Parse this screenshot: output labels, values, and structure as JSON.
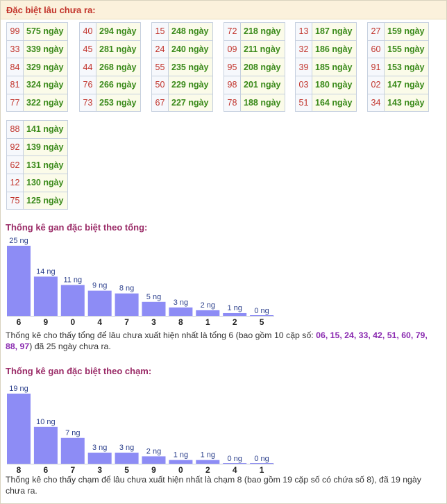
{
  "header": {
    "title": "Đặc biệt lâu chưa ra:"
  },
  "tables": [
    [
      {
        "num": "99",
        "days": "575 ngày"
      },
      {
        "num": "33",
        "days": "339 ngày"
      },
      {
        "num": "84",
        "days": "329 ngày"
      },
      {
        "num": "81",
        "days": "324 ngày"
      },
      {
        "num": "77",
        "days": "322 ngày"
      }
    ],
    [
      {
        "num": "40",
        "days": "294 ngày"
      },
      {
        "num": "45",
        "days": "281 ngày"
      },
      {
        "num": "44",
        "days": "268 ngày"
      },
      {
        "num": "76",
        "days": "266 ngày"
      },
      {
        "num": "73",
        "days": "253 ngày"
      }
    ],
    [
      {
        "num": "15",
        "days": "248 ngày"
      },
      {
        "num": "24",
        "days": "240 ngày"
      },
      {
        "num": "55",
        "days": "235 ngày"
      },
      {
        "num": "50",
        "days": "229 ngày"
      },
      {
        "num": "67",
        "days": "227 ngày"
      }
    ],
    [
      {
        "num": "72",
        "days": "218 ngày"
      },
      {
        "num": "09",
        "days": "211 ngày"
      },
      {
        "num": "95",
        "days": "208 ngày"
      },
      {
        "num": "98",
        "days": "201 ngày"
      },
      {
        "num": "78",
        "days": "188 ngày"
      }
    ],
    [
      {
        "num": "13",
        "days": "187 ngày"
      },
      {
        "num": "32",
        "days": "186 ngày"
      },
      {
        "num": "39",
        "days": "185 ngày"
      },
      {
        "num": "03",
        "days": "180 ngày"
      },
      {
        "num": "51",
        "days": "164 ngày"
      }
    ],
    [
      {
        "num": "27",
        "days": "159 ngày"
      },
      {
        "num": "60",
        "days": "155 ngày"
      },
      {
        "num": "91",
        "days": "153 ngày"
      },
      {
        "num": "02",
        "days": "147 ngày"
      },
      {
        "num": "34",
        "days": "143 ngày"
      }
    ],
    [
      {
        "num": "88",
        "days": "141 ngày"
      },
      {
        "num": "92",
        "days": "139 ngày"
      },
      {
        "num": "62",
        "days": "131 ngày"
      },
      {
        "num": "12",
        "days": "130 ngày"
      },
      {
        "num": "75",
        "days": "125 ngày"
      }
    ]
  ],
  "chart_data": [
    {
      "type": "bar",
      "title": "Thống kê gan đặc biệt theo tổng:",
      "categories": [
        "6",
        "9",
        "0",
        "4",
        "7",
        "3",
        "8",
        "1",
        "2",
        "5"
      ],
      "values": [
        25,
        14,
        11,
        9,
        8,
        5,
        3,
        2,
        1,
        0
      ],
      "value_labels": [
        "25 ng",
        "14 ng",
        "11 ng",
        "9 ng",
        "8 ng",
        "5 ng",
        "3 ng",
        "2 ng",
        "1 ng",
        "0 ng"
      ],
      "bar_color": "#8d8cf5"
    },
    {
      "type": "bar",
      "title": "Thống kê gan đặc biệt theo chạm:",
      "categories": [
        "8",
        "6",
        "7",
        "3",
        "5",
        "9",
        "0",
        "2",
        "4",
        "1"
      ],
      "values": [
        19,
        10,
        7,
        3,
        3,
        2,
        1,
        1,
        0,
        0
      ],
      "value_labels": [
        "19 ng",
        "10 ng",
        "7 ng",
        "3 ng",
        "3 ng",
        "2 ng",
        "1 ng",
        "1 ng",
        "0 ng",
        "0 ng"
      ],
      "bar_color": "#8d8cf5"
    }
  ],
  "summary1": {
    "prefix": "Thống kê cho thấy tổng để lâu chưa xuất hiện nhất là tổng 6 (bao gồm 10 cặp số: ",
    "pairs": "06, 15, 24, 33, 42, 51, 60, 79, 88, 97",
    "suffix": ") đã 25 ngày chưa ra."
  },
  "summary2": {
    "text": "Thống kê cho thấy chạm để lâu chưa xuất hiện nhất là chạm 8 (bao gồm 19 cặp số có chứa số 8), đã 19 ngày chưa ra."
  },
  "colors": {
    "title_red": "#c2332a",
    "section_title": "#9a2b67",
    "days_green": "#3a8a1a",
    "bar": "#8d8cf5",
    "highlight_purple": "#8a2ab0"
  }
}
